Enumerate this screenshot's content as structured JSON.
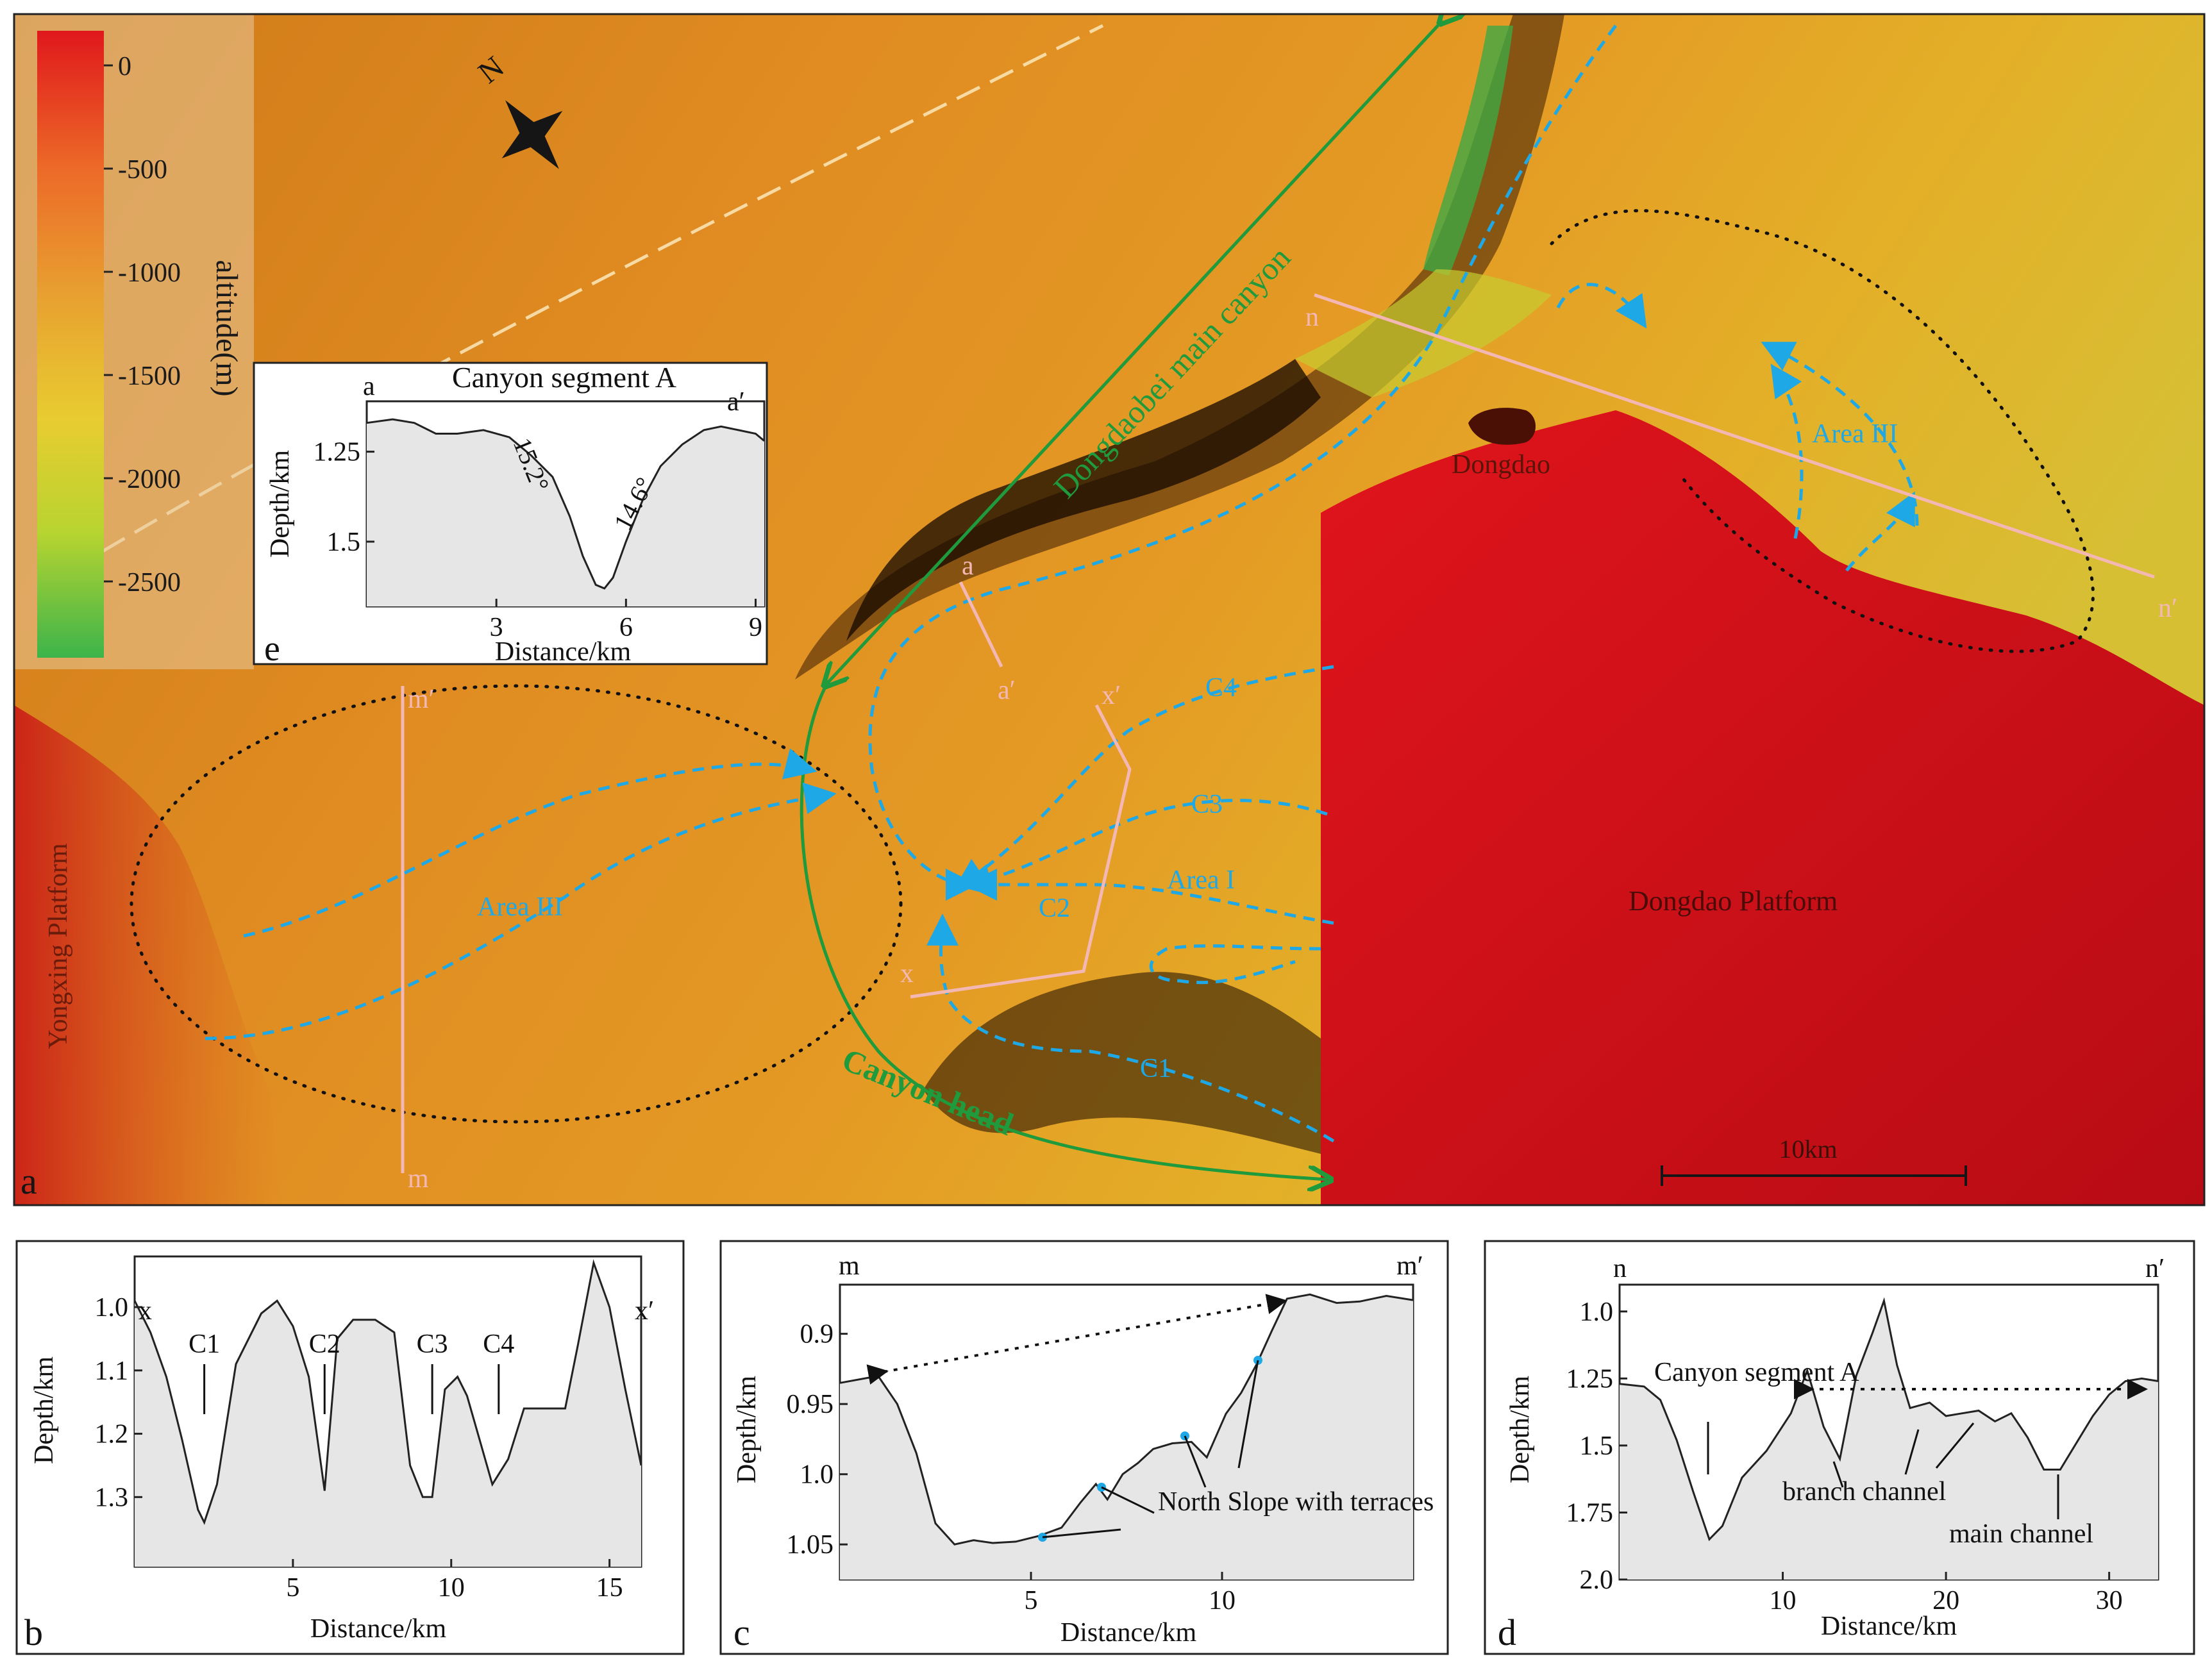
{
  "map": {
    "panel_label": "a",
    "compass_label": "N",
    "legend": {
      "title": "altitude(m)",
      "ticks": [
        "0",
        "-500",
        "-1000",
        "-1500",
        "-2000",
        "-2500"
      ],
      "colors": [
        "#e02020",
        "#ec6a28",
        "#e8a030",
        "#e8cc30",
        "#b8d430",
        "#3cb44a"
      ]
    },
    "labels": {
      "main_canyon": "Dongdaobei main canyon",
      "canyon_head": "Canyon head",
      "dongdao": "Dongdao",
      "dongdao_platform": "Dongdao Platform",
      "yongxing_platform": "Yongxing Platform",
      "area_i": "Area I",
      "area_iii_left": "Area III",
      "area_iii_right": "Area III",
      "c1": "C1",
      "c2": "C2",
      "c3": "C3",
      "c4": "C4"
    },
    "section_ends": {
      "a": "a",
      "a_prime": "a′",
      "x": "x",
      "x_prime": "x′",
      "m": "m",
      "m_prime": "m′",
      "n": "n",
      "n_prime": "n′"
    },
    "scale_bar": "10km",
    "colors": {
      "terrain_orange": "#e08a1e",
      "platform_red": "#d8141c",
      "channel_blue": "#1ea8e6",
      "canyon_green": "#1f9a3c",
      "section_pink": "#f4b8b4"
    }
  },
  "inset_e": {
    "panel_label": "e",
    "title": "Canyon segment A",
    "left_end": "a",
    "right_end": "a′",
    "xlabel": "Distance/km",
    "ylabel": "Depth/km",
    "xticks": [
      "3",
      "6",
      "9"
    ],
    "yticks": [
      "1.25",
      "1.5"
    ],
    "angle_left": "15.2°",
    "angle_right": "14.6°"
  },
  "panel_b": {
    "panel_label": "b",
    "left_end": "x",
    "right_end": "x′",
    "xlabel": "Distance/km",
    "ylabel": "Depth/km",
    "xticks": [
      "5",
      "10",
      "15"
    ],
    "yticks": [
      "1.0",
      "1.1",
      "1.2",
      "1.3"
    ],
    "channels": [
      "C1",
      "C2",
      "C3",
      "C4"
    ]
  },
  "panel_c": {
    "panel_label": "c",
    "left_end": "m",
    "right_end": "m′",
    "xlabel": "Distance/km",
    "ylabel": "Depth/km",
    "xticks": [
      "5",
      "10"
    ],
    "yticks": [
      "0.9",
      "0.95",
      "1.0",
      "1.05"
    ],
    "annotation": "North Slope with terraces"
  },
  "panel_d": {
    "panel_label": "d",
    "left_end": "n",
    "right_end": "n′",
    "xlabel": "Distance/km",
    "ylabel": "Depth/km",
    "xticks": [
      "10",
      "20",
      "30"
    ],
    "yticks": [
      "1.0",
      "1.25",
      "1.5",
      "1.75",
      "2.0"
    ],
    "label_canyon": "Canyon segment A",
    "label_branch": "branch channel",
    "label_main": "main channel"
  },
  "chart_data": [
    {
      "type": "line",
      "title": "Canyon segment A",
      "xlabel": "Distance/km",
      "ylabel": "Depth/km",
      "xlim": [
        0,
        9.2
      ],
      "ylim": [
        1.68,
        1.11
      ],
      "y_inverted": true,
      "x": [
        0,
        0.6,
        1.1,
        1.6,
        2.1,
        2.7,
        3.3,
        3.8,
        4.3,
        4.7,
        5.0,
        5.3,
        5.5,
        5.7,
        6.0,
        6.4,
        6.8,
        7.3,
        7.8,
        8.2,
        8.6,
        9.0,
        9.2
      ],
      "y": [
        1.17,
        1.16,
        1.17,
        1.2,
        1.2,
        1.19,
        1.21,
        1.26,
        1.32,
        1.43,
        1.54,
        1.62,
        1.63,
        1.6,
        1.5,
        1.38,
        1.29,
        1.23,
        1.19,
        1.18,
        1.19,
        1.2,
        1.22
      ]
    },
    {
      "type": "line",
      "title": "",
      "xlabel": "Distance/km",
      "ylabel": "Depth/km",
      "xlim": [
        0,
        16
      ],
      "ylim": [
        1.41,
        0.92
      ],
      "y_inverted": true,
      "x": [
        0,
        0.5,
        1.0,
        1.5,
        2.0,
        2.2,
        2.6,
        3.2,
        4.0,
        4.5,
        5.0,
        5.5,
        6.0,
        6.4,
        6.9,
        7.6,
        8.2,
        8.7,
        9.1,
        9.4,
        9.8,
        10.2,
        10.5,
        10.9,
        11.3,
        11.8,
        12.3,
        13.0,
        13.6,
        14.0,
        14.5,
        15.0,
        15.5,
        16.0
      ],
      "y": [
        0.99,
        1.04,
        1.11,
        1.21,
        1.32,
        1.34,
        1.28,
        1.09,
        1.01,
        0.99,
        1.03,
        1.11,
        1.29,
        1.05,
        1.02,
        1.02,
        1.04,
        1.25,
        1.3,
        1.3,
        1.13,
        1.11,
        1.14,
        1.21,
        1.28,
        1.24,
        1.16,
        1.16,
        1.16,
        1.06,
        0.93,
        1.0,
        1.13,
        1.25
      ]
    },
    {
      "type": "line",
      "title": "",
      "xlabel": "Distance/km",
      "ylabel": "Depth/km",
      "xlim": [
        0,
        15
      ],
      "ylim": [
        1.075,
        0.865
      ],
      "y_inverted": true,
      "x": [
        0,
        1.0,
        1.5,
        2.0,
        2.5,
        3.0,
        3.5,
        4.0,
        4.6,
        5.2,
        5.8,
        6.3,
        6.7,
        7.0,
        7.4,
        7.8,
        8.2,
        8.7,
        9.2,
        9.6,
        10.1,
        10.5,
        10.9,
        11.3,
        11.7,
        12.3,
        13.0,
        13.6,
        14.3,
        15.0
      ],
      "y": [
        0.935,
        0.93,
        0.95,
        0.985,
        1.035,
        1.05,
        1.047,
        1.049,
        1.048,
        1.044,
        1.038,
        1.02,
        1.007,
        1.018,
        1.0,
        0.992,
        0.982,
        0.978,
        0.977,
        0.988,
        0.957,
        0.942,
        0.922,
        0.898,
        0.875,
        0.872,
        0.878,
        0.877,
        0.873,
        0.876
      ]
    },
    {
      "type": "line",
      "title": "",
      "xlabel": "Distance/km",
      "ylabel": "Depth/km",
      "xlim": [
        0,
        33
      ],
      "ylim": [
        2.0,
        0.9
      ],
      "y_inverted": true,
      "x": [
        0,
        1.5,
        2.5,
        3.5,
        4.5,
        5.5,
        6.3,
        7.5,
        9.0,
        10.5,
        11.5,
        12.5,
        13.5,
        14.5,
        15.5,
        16.2,
        17.0,
        17.8,
        19.0,
        20.0,
        21.0,
        22.0,
        23.0,
        24.0,
        25.0,
        26.0,
        27.0,
        28.0,
        29.0,
        30.0,
        31.0,
        32.0,
        33.0
      ],
      "y": [
        1.27,
        1.28,
        1.33,
        1.48,
        1.67,
        1.85,
        1.8,
        1.62,
        1.52,
        1.38,
        1.22,
        1.43,
        1.55,
        1.24,
        1.08,
        0.96,
        1.2,
        1.36,
        1.34,
        1.39,
        1.38,
        1.37,
        1.41,
        1.38,
        1.47,
        1.59,
        1.59,
        1.49,
        1.39,
        1.31,
        1.26,
        1.25,
        1.26
      ]
    }
  ]
}
